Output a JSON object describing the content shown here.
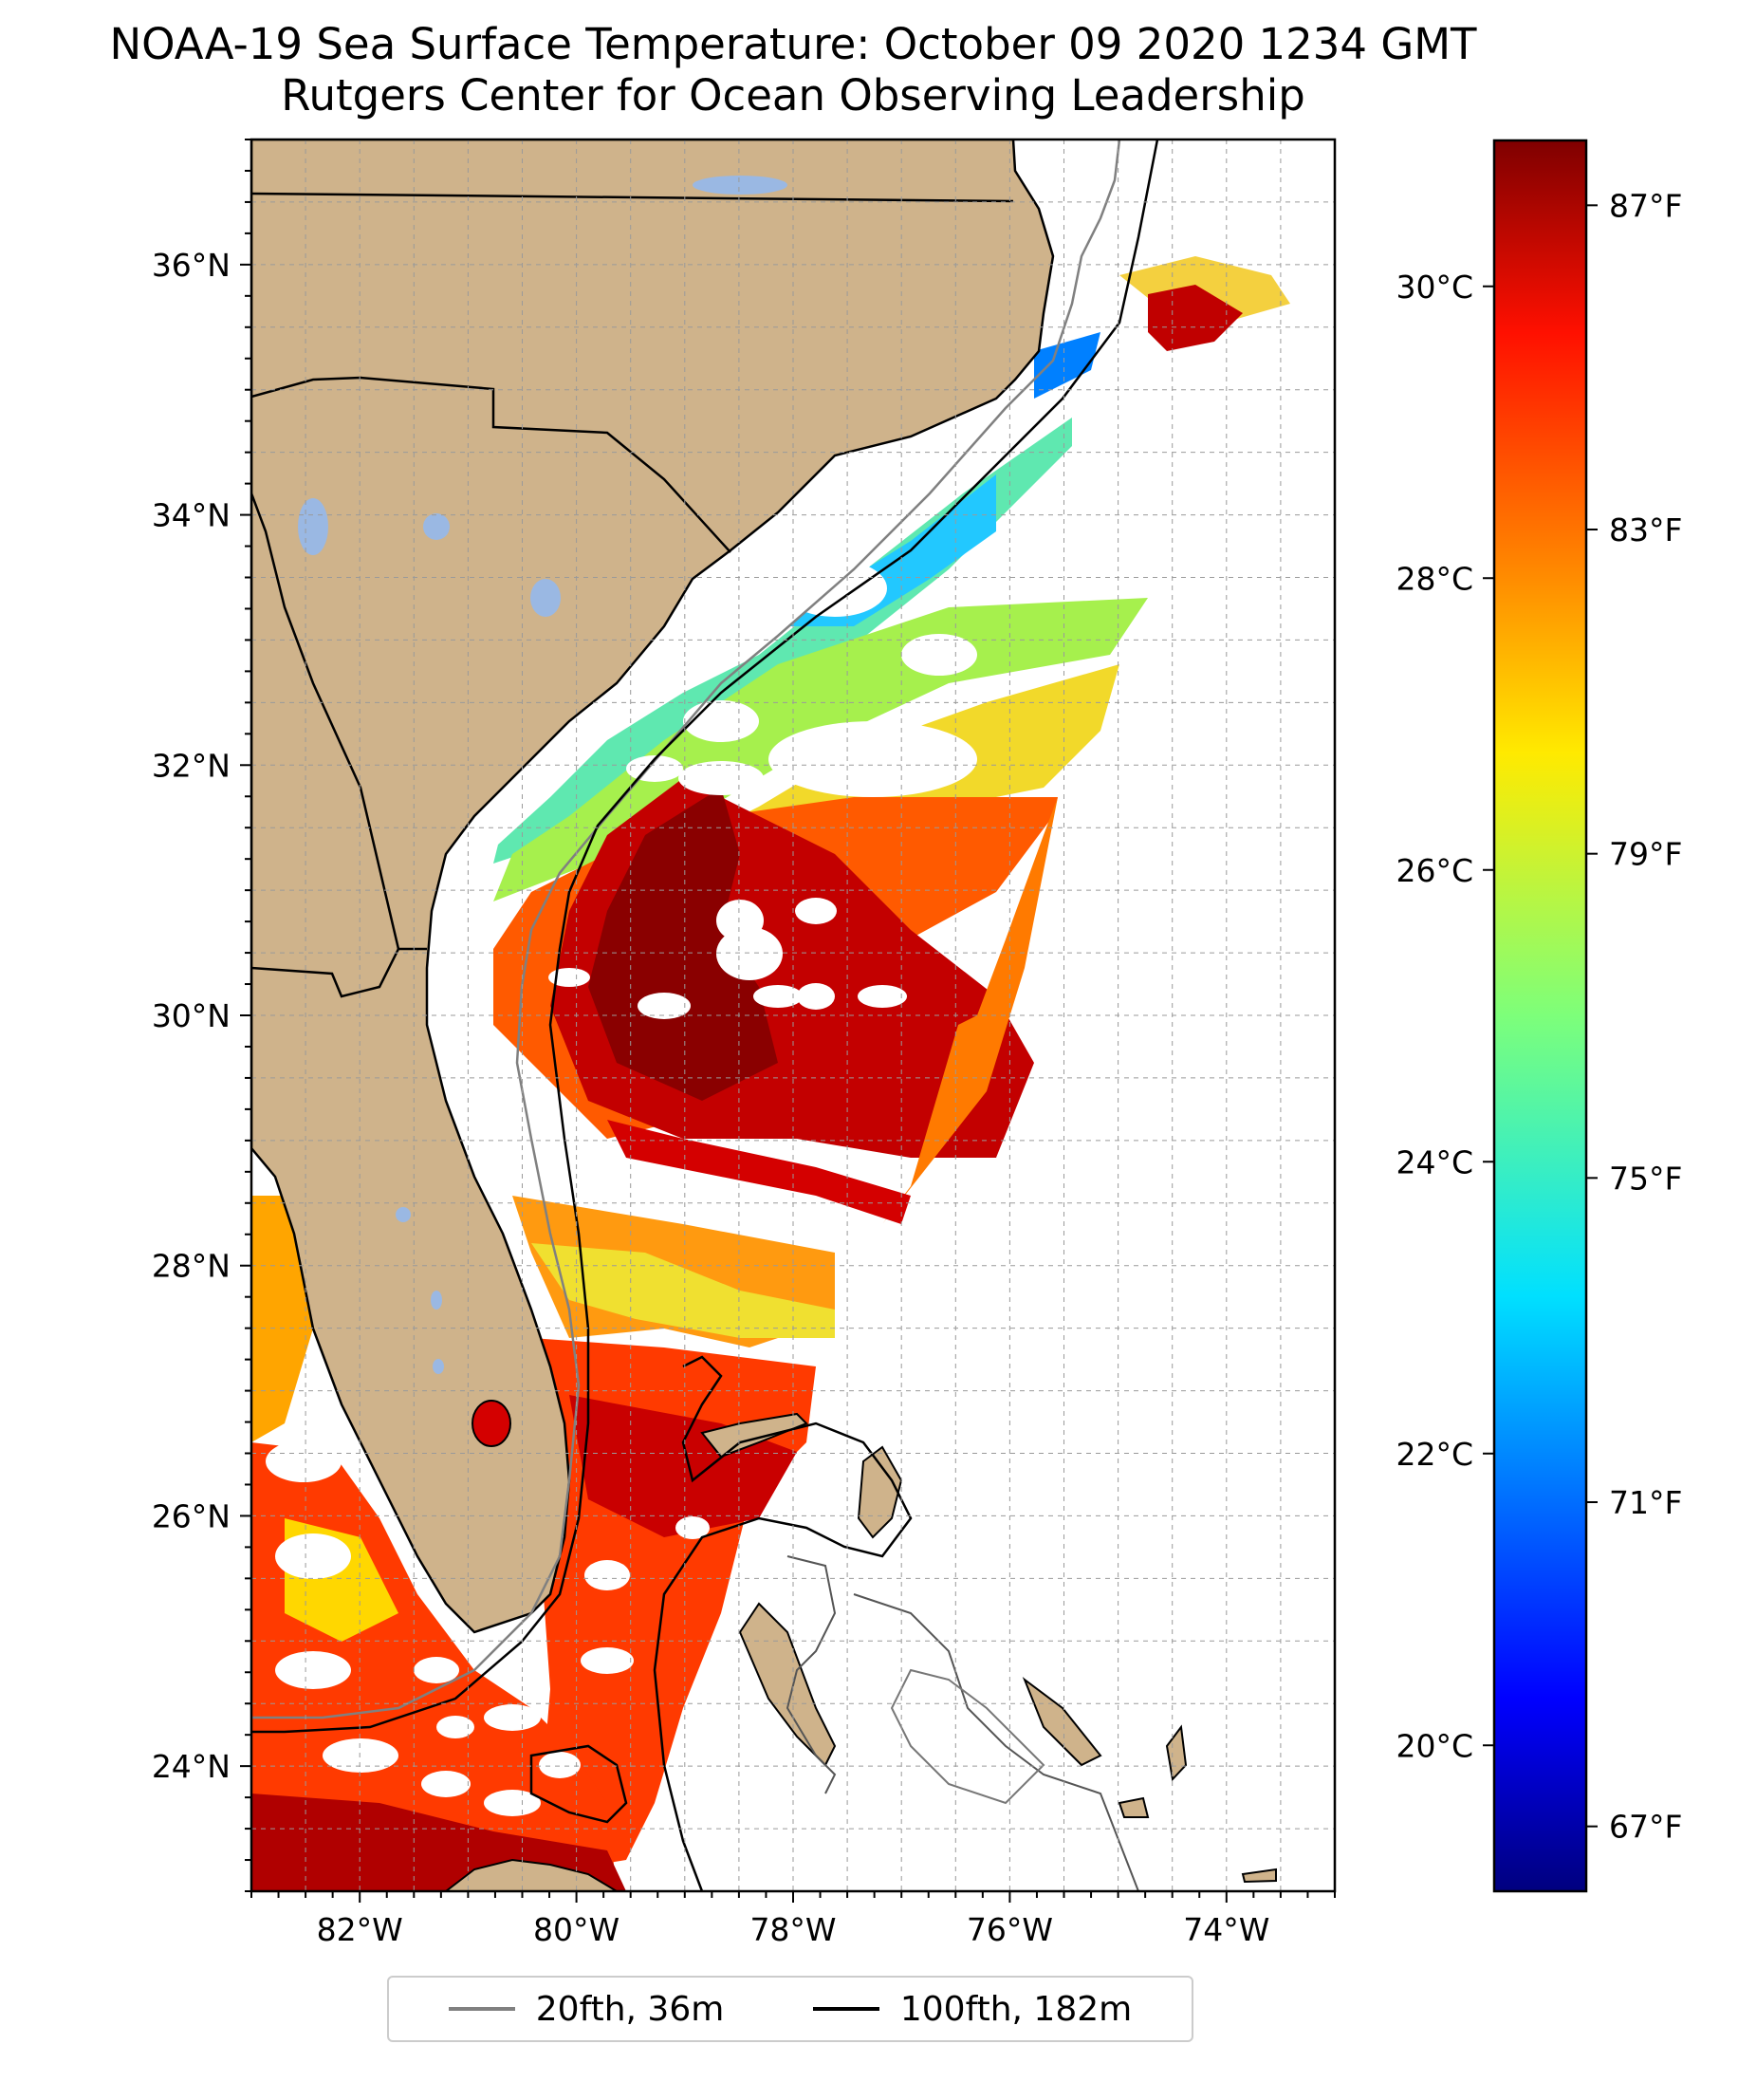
{
  "title": {
    "line1": "NOAA-19 Sea Surface Temperature: October 09 2020 1234 GMT",
    "line2": "Rutgers Center for Ocean Observing Leadership"
  },
  "map": {
    "lon_range": [
      -83,
      -73
    ],
    "lat_range": [
      23,
      37
    ],
    "lon_ticks": [
      {
        "value": -82,
        "label": "82°W"
      },
      {
        "value": -80,
        "label": "80°W"
      },
      {
        "value": -78,
        "label": "78°W"
      },
      {
        "value": -76,
        "label": "76°W"
      },
      {
        "value": -74,
        "label": "74°W"
      }
    ],
    "lat_ticks": [
      {
        "value": 36,
        "label": "36°N"
      },
      {
        "value": 34,
        "label": "34°N"
      },
      {
        "value": 32,
        "label": "32°N"
      },
      {
        "value": 30,
        "label": "30°N"
      },
      {
        "value": 28,
        "label": "28°N"
      },
      {
        "value": 26,
        "label": "26°N"
      },
      {
        "value": 24,
        "label": "24°N"
      }
    ],
    "grid": true,
    "land_color": "#cfb38b",
    "lake_color": "#9ab8e3"
  },
  "colorbar": {
    "colormap": "jet",
    "celsius_range": [
      19,
      31
    ],
    "celsius_ticks": [
      {
        "value": 30,
        "label": "30°C"
      },
      {
        "value": 28,
        "label": "28°C"
      },
      {
        "value": 26,
        "label": "26°C"
      },
      {
        "value": 24,
        "label": "24°C"
      },
      {
        "value": 22,
        "label": "22°C"
      },
      {
        "value": 20,
        "label": "20°C"
      }
    ],
    "fahrenheit_ticks": [
      {
        "value": 87,
        "label": "87°F"
      },
      {
        "value": 83,
        "label": "83°F"
      },
      {
        "value": 79,
        "label": "79°F"
      },
      {
        "value": 75,
        "label": "75°F"
      },
      {
        "value": 71,
        "label": "71°F"
      },
      {
        "value": 67,
        "label": "67°F"
      }
    ]
  },
  "legend": {
    "items": [
      {
        "label": "20fth, 36m",
        "color": "#808080"
      },
      {
        "label": "100fth, 182m",
        "color": "#000000"
      }
    ]
  }
}
